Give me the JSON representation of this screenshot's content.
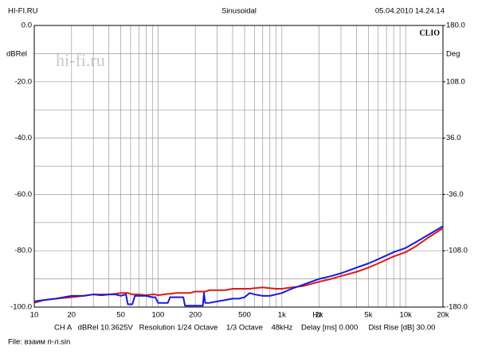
{
  "chart_data": {
    "type": "line",
    "title": "Sinusoidal",
    "header_left": "HI-FI.RU",
    "header_right": "05.04.2010 14.24.14",
    "brand": "CLIO",
    "watermark": "hi-fi.ru",
    "ylabel": "dBRel",
    "y2label": "Deg",
    "xunit": "Hz",
    "footer": "CH A   dBRel 10.3625V   Resolution 1/24 Octave    1/3 Octave    48kHz    Delay [ms] 0.000     Dist Rise [dB] 30.00",
    "file": "File: взаим п-л.sin",
    "log_x": true,
    "grid": true,
    "xlim": [
      10,
      20000
    ],
    "ylim": [
      -100,
      0
    ],
    "y2lim": [
      -180,
      180
    ],
    "xticks": [
      10,
      20,
      50,
      100,
      200,
      500,
      {
        "value": 1000,
        "label": "1k"
      },
      {
        "value": 2000,
        "label": "2k"
      },
      {
        "value": 5000,
        "label": "5k"
      },
      {
        "value": 10000,
        "label": "10k"
      },
      {
        "value": 20000,
        "label": "20k"
      }
    ],
    "x_minor_grid": [
      30,
      40,
      60,
      70,
      80,
      90,
      300,
      400,
      600,
      700,
      800,
      900,
      3000,
      4000,
      6000,
      7000,
      8000,
      9000
    ],
    "yticks": [
      {
        "value": 0,
        "label": "0.0"
      },
      {
        "value": -20,
        "label": "-20.0"
      },
      {
        "value": -40,
        "label": "-40.0"
      },
      {
        "value": -60,
        "label": "-60.0"
      },
      {
        "value": -80,
        "label": "-80.0"
      },
      {
        "value": -100,
        "label": "-100.0"
      }
    ],
    "y_minor_grid": [
      -10,
      -30,
      -50,
      -70,
      -90
    ],
    "y2ticks": [
      {
        "value": 180,
        "label": "180.0"
      },
      {
        "value": 108,
        "label": "108.0"
      },
      {
        "value": 36,
        "label": "36.0"
      },
      {
        "value": -36,
        "label": "-36.0"
      },
      {
        "value": -108,
        "label": "-108.0"
      },
      {
        "value": -180,
        "label": "-180.0"
      }
    ],
    "x": [
      10,
      12,
      15,
      20,
      25,
      30,
      35,
      40,
      45,
      50,
      55,
      57,
      62,
      65,
      70,
      80,
      90,
      95,
      100,
      120,
      125,
      140,
      160,
      165,
      170,
      180,
      200,
      230,
      235,
      240,
      260,
      300,
      350,
      400,
      450,
      500,
      550,
      600,
      700,
      800,
      900,
      1000,
      1200,
      1500,
      2000,
      2500,
      3000,
      4000,
      5000,
      6000,
      8000,
      10000,
      12000,
      15000,
      20000
    ],
    "series": [
      {
        "color": "#1a1adc",
        "values": [
          -98,
          -97.5,
          -97,
          -96,
          -96,
          -95.5,
          -95.8,
          -95.5,
          -95.5,
          -96,
          -95.5,
          -99,
          -99,
          -96,
          -96,
          -96,
          -96.5,
          -96.5,
          -98.5,
          -98.5,
          -96.5,
          -96.5,
          -96.5,
          -99.5,
          -99.5,
          -99.5,
          -99.5,
          -99.5,
          -95,
          -98.5,
          -98.5,
          -98,
          -97.5,
          -97,
          -97,
          -96.5,
          -95,
          -95.5,
          -96,
          -96,
          -95.5,
          -95,
          -93.5,
          -92,
          -90,
          -89,
          -88,
          -86,
          -84.5,
          -83,
          -80.5,
          -79,
          -77,
          -74.5,
          -71.3
        ]
      },
      {
        "color": "#e01818",
        "values": [
          -98.5,
          -97.5,
          -97,
          -96.5,
          -96,
          -95.5,
          -95.5,
          -95.5,
          -95.3,
          -95,
          -95,
          -95,
          -95.5,
          -95.5,
          -95.5,
          -95.8,
          -95.5,
          -95.5,
          -95.8,
          -95.3,
          -95.3,
          -95,
          -95,
          -95,
          -95,
          -95,
          -94.5,
          -94.5,
          -94.5,
          -94.5,
          -94,
          -94,
          -94,
          -93.5,
          -93.5,
          -93.5,
          -93.5,
          -93.3,
          -93,
          -93.3,
          -93.5,
          -93.5,
          -93,
          -92.5,
          -91,
          -90,
          -89,
          -87.5,
          -86,
          -84.5,
          -82,
          -80.5,
          -78.5,
          -75.5,
          -72
        ]
      }
    ]
  }
}
